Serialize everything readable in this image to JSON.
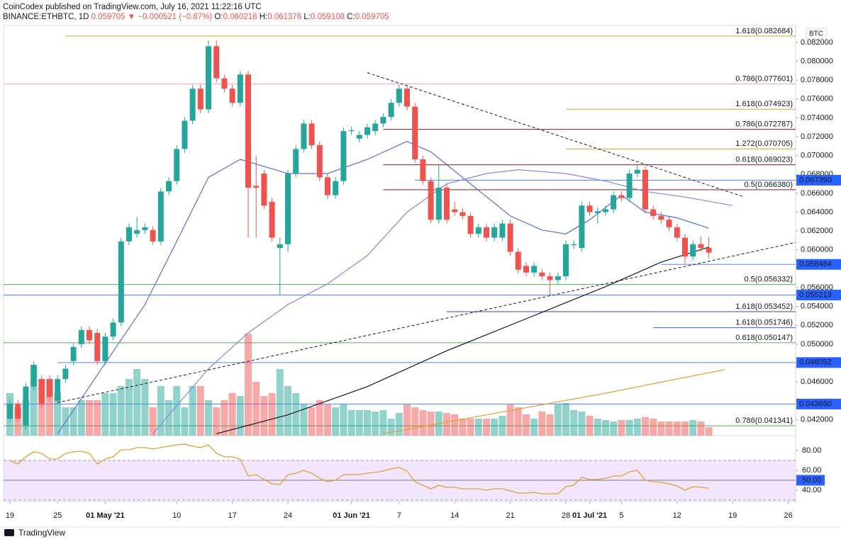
{
  "header": {
    "line1": "CoinCodex published on TradingView.com, July 16, 2021 11:22:16 UTC",
    "line2": [
      {
        "text": "BINANCE:ETHBTC, 1D",
        "color": "#131722"
      },
      {
        "text": " 0.059705",
        "color": "#ef5350"
      },
      {
        "text": " ▼ −0.000521 (−0.87%)",
        "color": "#ef5350"
      },
      {
        "text": " O:",
        "color": "#131722"
      },
      {
        "text": "0.060218",
        "color": "#ef5350"
      },
      {
        "text": " H:",
        "color": "#131722"
      },
      {
        "text": "0.061376",
        "color": "#ef5350"
      },
      {
        "text": " L:",
        "color": "#131722"
      },
      {
        "text": "0.059108",
        "color": "#ef5350"
      },
      {
        "text": " C:",
        "color": "#131722"
      },
      {
        "text": "0.059705",
        "color": "#ef5350"
      }
    ]
  },
  "footer": {
    "brand": "TradingView"
  },
  "chart_data": {
    "type": "candlestick",
    "unit": "BTC",
    "categories": [
      "19",
      null,
      null,
      null,
      null,
      null,
      "25",
      null,
      null,
      null,
      null,
      null,
      "01 May '21",
      null,
      null,
      null,
      null,
      null,
      null,
      null,
      null,
      "10",
      null,
      null,
      null,
      null,
      null,
      null,
      "17",
      null,
      null,
      null,
      null,
      null,
      null,
      "24",
      null,
      null,
      null,
      null,
      null,
      null,
      null,
      "01 Jun '21",
      null,
      null,
      null,
      null,
      null,
      "7",
      null,
      null,
      null,
      null,
      null,
      null,
      "14",
      null,
      null,
      null,
      null,
      null,
      null,
      "21",
      null,
      null,
      null,
      null,
      null,
      null,
      "28",
      null,
      null,
      "01 Jul '21",
      null,
      null,
      null,
      "5",
      null,
      null,
      null,
      null,
      null,
      null,
      "12",
      null,
      null,
      null,
      null,
      null,
      null,
      "19",
      null,
      null,
      null,
      null,
      null,
      null,
      "26"
    ],
    "up_color": "#26a69a",
    "down_color": "#ef5350",
    "open": [
      0.0421,
      0.0437,
      0.0414,
      0.0455,
      0.0463,
      0.0463,
      0.044,
      0.0463,
      0.0482,
      0.05,
      0.0515,
      0.0512,
      0.0482,
      0.0508,
      0.0523,
      0.0609,
      0.0617,
      0.0621,
      0.0621,
      0.0609,
      0.0662,
      0.0673,
      0.0707,
      0.0737,
      0.0771,
      0.0749,
      0.0816,
      0.0782,
      0.0771,
      0.0756,
      0.0786,
      0.0668,
      0.0681,
      0.0651,
      0.0602,
      0.0606,
      0.0681,
      0.0707,
      0.0734,
      0.0711,
      0.0677,
      0.0658,
      0.0673,
      0.0726,
      0.0718,
      0.0722,
      0.0726,
      0.0734,
      0.0741,
      0.0756,
      0.0771,
      0.0752,
      0.0696,
      0.0673,
      0.0632,
      0.0666,
      0.0643,
      0.064,
      0.0636,
      0.0617,
      0.0624,
      0.0613,
      0.0613,
      0.0628,
      0.0598,
      0.0583,
      0.0576,
      0.0576,
      0.0572,
      0.0568,
      0.0572,
      0.0605,
      0.0602,
      0.0647,
      0.0639,
      0.064,
      0.0643,
      0.0658,
      0.0655,
      0.0681,
      0.0685,
      0.0643,
      0.0636,
      0.0632,
      0.0624,
      0.0613,
      0.0593,
      0.0606,
      0.060218,
      null,
      null,
      null,
      null,
      null,
      null,
      null,
      null,
      null,
      null
    ],
    "high": [
      0.0441,
      0.0441,
      0.0459,
      0.0482,
      0.0467,
      0.0467,
      0.0467,
      0.0478,
      0.0501,
      0.0519,
      0.0519,
      0.0516,
      0.0512,
      0.0527,
      0.0613,
      0.0628,
      0.0635,
      0.0628,
      0.0625,
      0.0666,
      0.0677,
      0.0711,
      0.0741,
      0.0775,
      0.0775,
      0.0822,
      0.0822,
      0.0786,
      0.0775,
      0.079,
      0.079,
      0.07,
      0.0685,
      0.0655,
      0.0613,
      0.0685,
      0.0711,
      0.0738,
      0.0738,
      0.0715,
      0.0681,
      0.0677,
      0.073,
      0.0731,
      0.0726,
      0.0734,
      0.0738,
      0.0745,
      0.076,
      0.0775,
      0.0775,
      0.0756,
      0.07,
      0.0677,
      0.069,
      0.067,
      0.0651,
      0.0644,
      0.064,
      0.0628,
      0.0628,
      0.0628,
      0.0632,
      0.0632,
      0.0602,
      0.0587,
      0.0587,
      0.058,
      0.0576,
      0.0576,
      0.061,
      0.061,
      0.0651,
      0.0651,
      0.0645,
      0.0647,
      0.0662,
      0.0662,
      0.0685,
      0.069,
      0.0689,
      0.0647,
      0.064,
      0.0636,
      0.0628,
      0.0617,
      0.061,
      0.0614,
      0.061376,
      null,
      null,
      null,
      null,
      null,
      null,
      null,
      null,
      null,
      null
    ],
    "low": [
      0.0417,
      0.0417,
      0.041,
      0.0451,
      0.0433,
      0.044,
      0.0436,
      0.0459,
      0.0478,
      0.0496,
      0.05,
      0.0478,
      0.0478,
      0.0504,
      0.0519,
      0.0605,
      0.0613,
      0.0617,
      0.0605,
      0.0605,
      0.0658,
      0.0669,
      0.0703,
      0.0733,
      0.0745,
      0.0745,
      0.0778,
      0.0767,
      0.0752,
      0.0752,
      0.0613,
      0.0613,
      0.0643,
      0.0609,
      0.0552,
      0.0598,
      0.0677,
      0.0703,
      0.0707,
      0.0673,
      0.0654,
      0.0654,
      0.0669,
      0.0722,
      0.0714,
      0.0718,
      0.0722,
      0.073,
      0.0737,
      0.0752,
      0.0748,
      0.0692,
      0.0669,
      0.0628,
      0.0628,
      0.0628,
      0.0636,
      0.0632,
      0.0613,
      0.0613,
      0.0609,
      0.0609,
      0.0609,
      0.0594,
      0.0575,
      0.0572,
      0.0572,
      0.0568,
      0.0552,
      0.0564,
      0.0568,
      0.0601,
      0.0598,
      0.0636,
      0.0628,
      0.0636,
      0.0639,
      0.0651,
      0.0651,
      0.0677,
      0.0639,
      0.0632,
      0.0628,
      0.062,
      0.0609,
      0.0585,
      0.0589,
      0.0598,
      0.059108,
      null,
      null,
      null,
      null,
      null,
      null,
      null,
      null,
      null,
      null
    ],
    "close": [
      0.0437,
      0.0421,
      0.0455,
      0.0478,
      0.0437,
      0.0444,
      0.0463,
      0.0474,
      0.0497,
      0.0515,
      0.0504,
      0.0482,
      0.0508,
      0.0523,
      0.0609,
      0.0624,
      0.0621,
      0.0624,
      0.0609,
      0.0662,
      0.0673,
      0.0707,
      0.0737,
      0.0771,
      0.0749,
      0.0816,
      0.0782,
      0.0771,
      0.0756,
      0.0786,
      0.0666,
      0.0666,
      0.0647,
      0.0613,
      0.0606,
      0.0681,
      0.0707,
      0.0734,
      0.0711,
      0.0677,
      0.0658,
      0.0673,
      0.0726,
      0.0727,
      0.0722,
      0.073,
      0.0734,
      0.0741,
      0.0756,
      0.0771,
      0.0752,
      0.0696,
      0.0673,
      0.0632,
      0.0666,
      0.0632,
      0.064,
      0.0636,
      0.0617,
      0.0624,
      0.0613,
      0.0624,
      0.0628,
      0.0598,
      0.0579,
      0.0576,
      0.0583,
      0.0572,
      0.0568,
      0.0572,
      0.0606,
      0.0606,
      0.0647,
      0.064,
      0.0641,
      0.0643,
      0.0658,
      0.0655,
      0.0681,
      0.0685,
      0.0643,
      0.0636,
      0.0632,
      0.0624,
      0.0613,
      0.0593,
      0.0606,
      0.0602,
      0.059705,
      null,
      null,
      null,
      null,
      null,
      null,
      null,
      null,
      null,
      null
    ],
    "ylim": [
      0.0403,
      0.0838
    ],
    "yticks": [
      {
        "value": 0.082,
        "label": "0.082000"
      },
      {
        "value": 0.08,
        "label": "0.080000"
      },
      {
        "value": 0.078,
        "label": "0.078000"
      },
      {
        "value": 0.076,
        "label": "0.076000"
      },
      {
        "value": 0.074,
        "label": "0.074000"
      },
      {
        "value": 0.072,
        "label": "0.072000"
      },
      {
        "value": 0.07,
        "label": "0.070000"
      },
      {
        "value": 0.068,
        "label": "0.068000"
      },
      {
        "value": 0.066,
        "label": "0.066000"
      },
      {
        "value": 0.064,
        "label": "0.064000"
      },
      {
        "value": 0.062,
        "label": "0.062000"
      },
      {
        "value": 0.06,
        "label": "0.060000"
      },
      {
        "value": 0.056,
        "label": "0.056000"
      },
      {
        "value": 0.054,
        "label": "0.054000"
      },
      {
        "value": 0.052,
        "label": "0.052000"
      },
      {
        "value": 0.05,
        "label": "0.050000"
      },
      {
        "value": 0.046,
        "label": "0.046000"
      },
      {
        "value": 0.042,
        "label": "0.042000"
      }
    ],
    "volume": {
      "ylim": [
        0,
        100
      ],
      "opacity": 0.5,
      "values": [
        30,
        20,
        25,
        50,
        40,
        40,
        30,
        20,
        20,
        25,
        25,
        25,
        30,
        30,
        35,
        40,
        47,
        40,
        20,
        35,
        25,
        35,
        20,
        35,
        35,
        25,
        20,
        25,
        30,
        28,
        72,
        38,
        28,
        30,
        47,
        35,
        30,
        22,
        20,
        25,
        22,
        20,
        22,
        18,
        18,
        18,
        17,
        18,
        12,
        16,
        22,
        20,
        18,
        17,
        17,
        16,
        15,
        12,
        12,
        12,
        12,
        12,
        14,
        22,
        20,
        15,
        12,
        17,
        15,
        22,
        23,
        18,
        17,
        14,
        12,
        11,
        10,
        11,
        11,
        12,
        13,
        12,
        10,
        10,
        10,
        10,
        11,
        10,
        6,
        null,
        null,
        null,
        null,
        null,
        null,
        null,
        null,
        null,
        null
      ]
    },
    "overlays": [
      {
        "color": "#5b6fd6",
        "x": [
          6,
          17,
          21,
          25,
          29,
          35,
          40,
          45,
          50,
          53,
          58,
          63,
          67,
          70,
          73,
          77,
          80,
          84,
          88
        ],
        "values": [
          0.0405,
          0.0542,
          0.0609,
          0.0677,
          0.0696,
          0.0681,
          0.0681,
          0.0696,
          0.0715,
          0.0704,
          0.067,
          0.0636,
          0.0621,
          0.0617,
          0.0632,
          0.0658,
          0.064,
          0.0634,
          0.0623
        ]
      },
      {
        "color": "#8a85e0",
        "x": [
          18,
          25,
          30,
          35,
          40,
          45,
          50,
          55,
          60,
          64,
          70,
          75,
          80,
          85,
          91
        ],
        "values": [
          0.0405,
          0.0474,
          0.0512,
          0.0542,
          0.0564,
          0.0594,
          0.064,
          0.067,
          0.0681,
          0.0685,
          0.0681,
          0.0673,
          0.0662,
          0.0656,
          0.0647
        ]
      },
      {
        "color": "#131722",
        "x": [
          26,
          35,
          45,
          55,
          65,
          75,
          82,
          88
        ],
        "values": [
          0.0405,
          0.0425,
          0.0455,
          0.0493,
          0.0527,
          0.0561,
          0.0587,
          0.0603
        ]
      },
      {
        "color": "#e0a030",
        "x": [
          47,
          60,
          75,
          90
        ],
        "values": [
          0.0405,
          0.0425,
          0.0448,
          0.0473
        ]
      }
    ],
    "trendlines": [
      {
        "x": [
          45,
          92.5
        ],
        "values": [
          0.0788,
          0.0656
        ]
      },
      {
        "x": [
          6,
          99
        ],
        "values": [
          0.0438,
          0.0608
        ]
      }
    ],
    "fib_levels": [
      {
        "value": 0.082684,
        "label": "1.618(0.082684)",
        "color": "#e0a020",
        "from": 7
      },
      {
        "value": 0.077601,
        "label": "0.786(0.077601)",
        "color": "#f4aab4"
      },
      {
        "value": 0.074923,
        "label": "1.618(0.074923)",
        "color": "#d9a21b",
        "from": 70
      },
      {
        "value": 0.072787,
        "label": "0.786(0.072787)",
        "color": "#8b1a1a",
        "from": 47
      },
      {
        "value": 0.070705,
        "label": "1.272(0.070705)",
        "color": "#d9a21b",
        "from": 70
      },
      {
        "value": 0.069023,
        "label": "0.618(0.069023)",
        "color": "#8b1a1a",
        "from": 47
      },
      {
        "value": 0.06638,
        "label": "0.5(0.066380)",
        "color": "#8b1a1a",
        "from": 47
      },
      {
        "value": 0.056332,
        "label": "0.5(0.056332)",
        "color": "#4caf50"
      },
      {
        "value": 0.053452,
        "label": "1.618(0.053452)",
        "color": "#5e35b1",
        "from": 55
      },
      {
        "value": 0.051746,
        "label": "1.618(0.051746)",
        "color": "#2962ff",
        "from": 81
      },
      {
        "value": 0.050147,
        "label": "0.618(0.050147)",
        "color": "#4caf50"
      },
      {
        "value": 0.041341,
        "label": "0.786(0.041341)",
        "color": "#4caf50"
      }
    ],
    "price_levels": [
      {
        "value": 0.06739,
        "label": "0.067390",
        "color": "#2962ff",
        "from": 51
      },
      {
        "value": 0.058464,
        "label": "0.058464",
        "color": "#2962ff",
        "from": 82
      },
      {
        "value": 0.055213,
        "label": "0.055213",
        "color": "#2962ff"
      },
      {
        "value": 0.048052,
        "label": "0.048052",
        "color": "#2962ff",
        "from": 6
      },
      {
        "value": 0.04365,
        "label": "0.043650",
        "color": "#2962ff"
      }
    ],
    "rsi": {
      "color": "#e0a030",
      "ylim": [
        28.6,
        92.1
      ],
      "band": [
        30,
        70
      ],
      "band_color": "#e9d5ff",
      "yticks": [
        {
          "value": 80,
          "label": "80.00"
        },
        {
          "value": 60,
          "label": "60.00"
        },
        {
          "value": 40,
          "label": "40.00"
        }
      ],
      "level": {
        "value": 50,
        "label": "50.00"
      },
      "values": [
        70,
        66.4,
        73.6,
        78.6,
        77.1,
        71.4,
        71.4,
        77.1,
        78.6,
        79.3,
        77.1,
        66.4,
        71.4,
        73.6,
        80.7,
        80.7,
        82.9,
        82.9,
        81.4,
        82.9,
        84.3,
        85.7,
        86.4,
        84.3,
        82.9,
        85.7,
        77.1,
        73.6,
        73.6,
        71.4,
        54.3,
        55.7,
        50.7,
        46.4,
        45.7,
        55.7,
        57.1,
        60,
        57.1,
        52.1,
        48.6,
        50,
        55.7,
        55.7,
        55.7,
        57.1,
        57.9,
        59.3,
        61.4,
        62.9,
        59.3,
        48.6,
        45,
        41.4,
        45,
        42.9,
        42.9,
        41.4,
        41.4,
        41.4,
        40,
        41.4,
        41.4,
        39.3,
        37.1,
        37.1,
        37.9,
        36.4,
        36.4,
        36.4,
        43.6,
        45,
        52.9,
        50.7,
        50.7,
        52.1,
        54.3,
        54.3,
        58.6,
        60,
        50,
        48.6,
        47.9,
        46.4,
        44.3,
        40,
        43.6,
        42.9,
        42.1,
        null,
        null,
        null,
        null,
        null,
        null,
        null,
        null,
        null,
        null
      ]
    }
  }
}
